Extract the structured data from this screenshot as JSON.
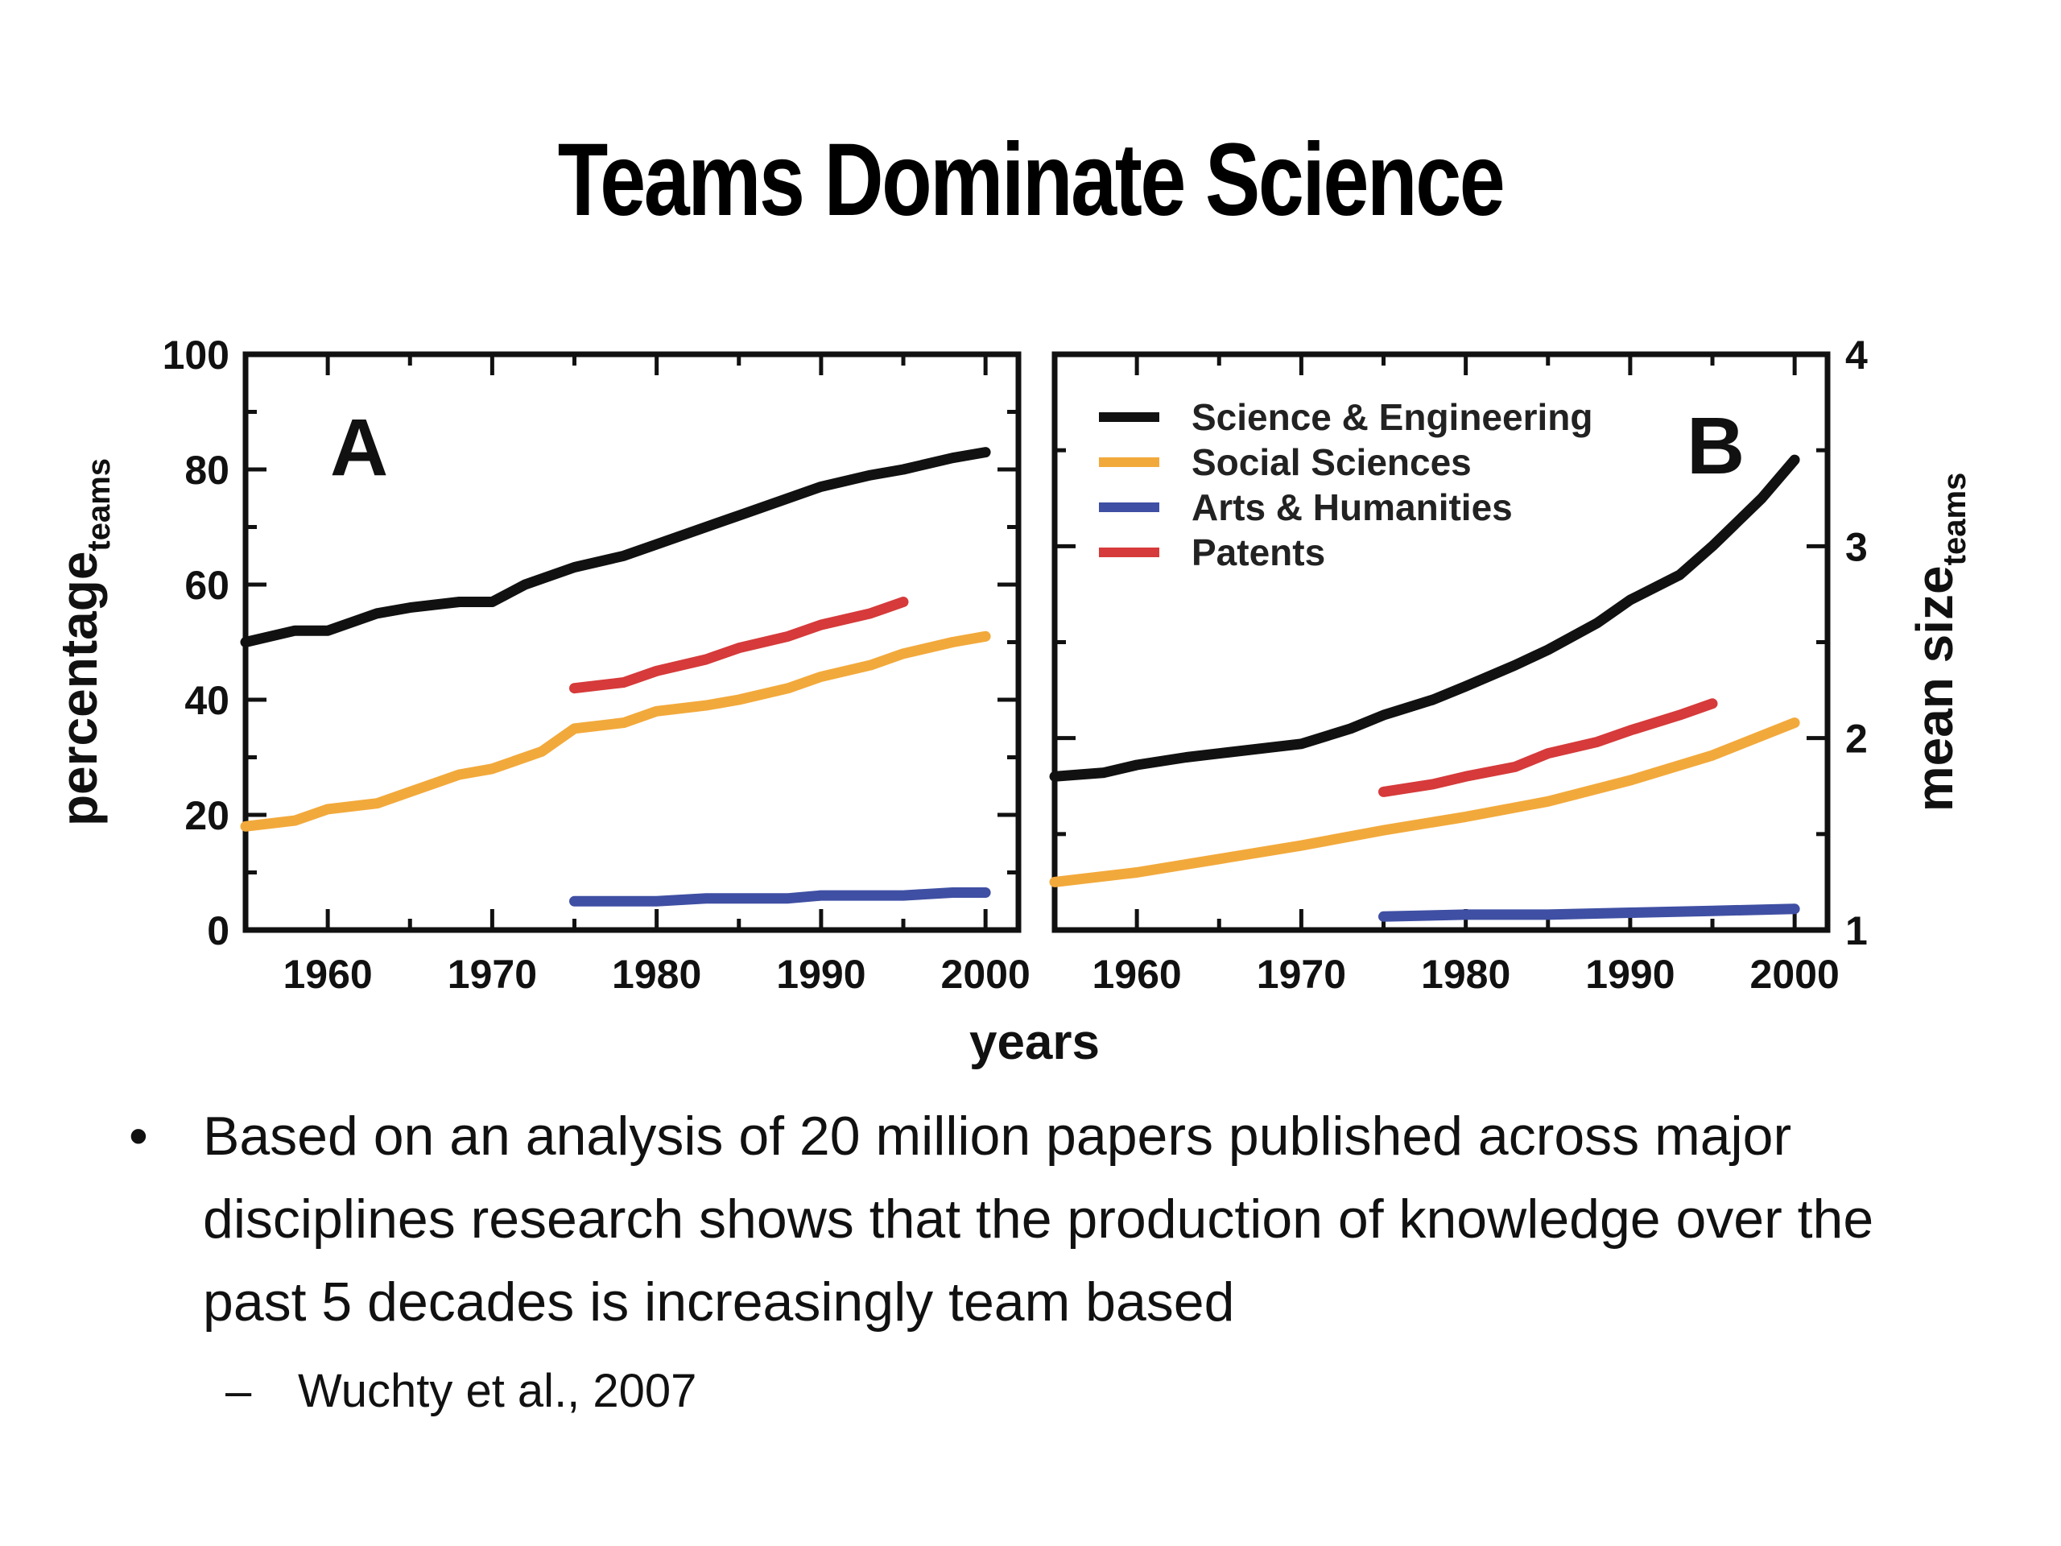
{
  "slide": {
    "title": "Teams Dominate Science",
    "bullet": "Based on an analysis of 20 million papers published across major disciplines research shows that the production of knowledge over the past 5 decades is increasingly team based",
    "sub_bullet": "Wuchty et al., 2007",
    "bullet_marker": "•",
    "sub_marker": "–"
  },
  "figure": {
    "shared_xlabel": "years"
  },
  "colors": {
    "science_engineering": "#111111",
    "social_sciences": "#f2a93b",
    "arts_humanities": "#3f4fa3",
    "patents": "#d63a3a"
  },
  "chart_data": [
    {
      "type": "line",
      "panel_label": "A",
      "title": "",
      "xlabel": "",
      "ylabel": "percentage",
      "ylabel_sub": "teams",
      "xlim": [
        1955,
        2002
      ],
      "ylim": [
        0,
        100
      ],
      "xticks": [
        1960,
        1970,
        1980,
        1990,
        2000
      ],
      "yticks": [
        0,
        20,
        40,
        60,
        80,
        100
      ],
      "series": [
        {
          "key": "science_engineering",
          "x": [
            1955,
            1958,
            1960,
            1963,
            1965,
            1968,
            1970,
            1972,
            1975,
            1978,
            1980,
            1983,
            1985,
            1988,
            1990,
            1993,
            1995,
            1998,
            2000
          ],
          "y": [
            50,
            52,
            52,
            55,
            56,
            57,
            57,
            60,
            63,
            65,
            67,
            70,
            72,
            75,
            77,
            79,
            80,
            82,
            83
          ]
        },
        {
          "key": "social_sciences",
          "x": [
            1955,
            1958,
            1960,
            1963,
            1965,
            1968,
            1970,
            1973,
            1975,
            1978,
            1980,
            1983,
            1985,
            1988,
            1990,
            1993,
            1995,
            1998,
            2000
          ],
          "y": [
            18,
            19,
            21,
            22,
            24,
            27,
            28,
            31,
            35,
            36,
            38,
            39,
            40,
            42,
            44,
            46,
            48,
            50,
            51
          ]
        },
        {
          "key": "arts_humanities",
          "x": [
            1975,
            1978,
            1980,
            1983,
            1985,
            1988,
            1990,
            1993,
            1995,
            1998,
            2000
          ],
          "y": [
            5,
            5,
            5,
            5.5,
            5.5,
            5.5,
            6,
            6,
            6,
            6.5,
            6.5
          ]
        },
        {
          "key": "patents",
          "x": [
            1975,
            1978,
            1980,
            1983,
            1985,
            1988,
            1990,
            1993,
            1995
          ],
          "y": [
            42,
            43,
            45,
            47,
            49,
            51,
            53,
            55,
            57
          ]
        }
      ]
    },
    {
      "type": "line",
      "panel_label": "B",
      "title": "",
      "xlabel": "",
      "ylabel": "mean size",
      "ylabel_sub": "teams",
      "xlim": [
        1955,
        2002
      ],
      "ylim": [
        1,
        4
      ],
      "xticks": [
        1960,
        1970,
        1980,
        1990,
        2000
      ],
      "yticks": [
        1,
        2,
        3,
        4
      ],
      "legend": "top-left",
      "series": [
        {
          "key": "science_engineering",
          "name": "Science & Engineering",
          "x": [
            1955,
            1958,
            1960,
            1963,
            1965,
            1968,
            1970,
            1973,
            1975,
            1978,
            1980,
            1983,
            1985,
            1988,
            1990,
            1993,
            1995,
            1998,
            2000
          ],
          "y": [
            1.8,
            1.82,
            1.86,
            1.9,
            1.92,
            1.95,
            1.97,
            2.05,
            2.12,
            2.2,
            2.27,
            2.38,
            2.46,
            2.6,
            2.72,
            2.85,
            3.0,
            3.25,
            3.45
          ]
        },
        {
          "key": "social_sciences",
          "name": "Social Sciences",
          "x": [
            1955,
            1960,
            1965,
            1970,
            1975,
            1980,
            1985,
            1990,
            1995,
            2000
          ],
          "y": [
            1.25,
            1.3,
            1.37,
            1.44,
            1.52,
            1.59,
            1.67,
            1.78,
            1.91,
            2.08
          ]
        },
        {
          "key": "arts_humanities",
          "name": "Arts & Humanities",
          "x": [
            1975,
            1980,
            1985,
            1990,
            1995,
            2000
          ],
          "y": [
            1.07,
            1.08,
            1.08,
            1.09,
            1.1,
            1.11
          ]
        },
        {
          "key": "patents",
          "name": "Patents",
          "x": [
            1975,
            1978,
            1980,
            1983,
            1985,
            1988,
            1990,
            1993,
            1995
          ],
          "y": [
            1.72,
            1.76,
            1.8,
            1.85,
            1.92,
            1.98,
            2.04,
            2.12,
            2.18
          ]
        }
      ]
    }
  ]
}
